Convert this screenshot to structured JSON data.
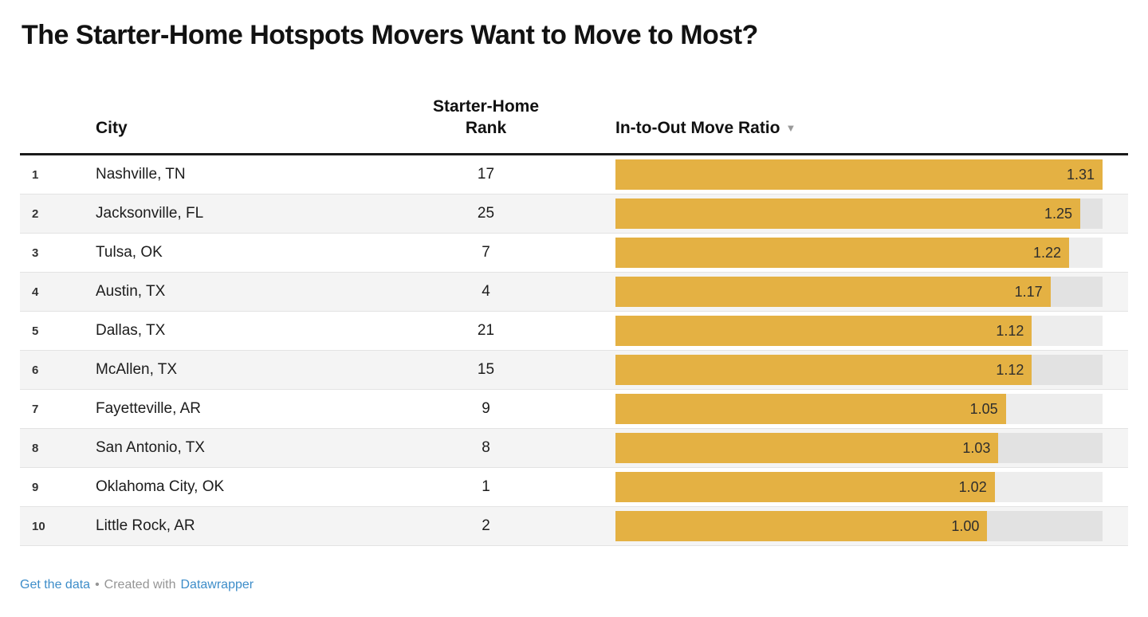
{
  "title": "The Starter-Home Hotspots Movers Want to Move to Most?",
  "table": {
    "headers": {
      "city": "City",
      "rank_line1": "Starter-Home",
      "rank_line2": "Rank",
      "ratio": "In-to-Out Move Ratio",
      "sort_icon": "▼"
    }
  },
  "chart_data": {
    "type": "bar",
    "orientation": "horizontal",
    "title": "The Starter-Home Hotspots Movers Want to Move to Most?",
    "columns": [
      "City",
      "Starter-Home Rank",
      "In-to-Out Move Ratio"
    ],
    "row_numbers": [
      "1",
      "2",
      "3",
      "4",
      "5",
      "6",
      "7",
      "8",
      "9",
      "10"
    ],
    "categories": [
      "Nashville, TN",
      "Jacksonville, FL",
      "Tulsa, OK",
      "Austin, TX",
      "Dallas, TX",
      "McAllen, TX",
      "Fayetteville, AR",
      "San Antonio, TX",
      "Oklahoma City, OK",
      "Little Rock, AR"
    ],
    "starter_home_ranks": [
      "17",
      "25",
      "7",
      "4",
      "21",
      "15",
      "9",
      "8",
      "1",
      "2"
    ],
    "values": [
      1.31,
      1.25,
      1.22,
      1.17,
      1.12,
      1.12,
      1.05,
      1.03,
      1.02,
      1.0
    ],
    "value_labels": [
      "1.31",
      "1.25",
      "1.22",
      "1.17",
      "1.12",
      "1.12",
      "1.05",
      "1.03",
      "1.02",
      "1.00"
    ],
    "xlim": [
      0,
      1.31
    ],
    "sort": {
      "column": "In-to-Out Move Ratio",
      "direction": "desc"
    },
    "bar_color": "#e4b143",
    "row_stripe_color": "#f4f4f4",
    "legend_position": "none",
    "grid": false
  },
  "footer": {
    "get_data": "Get the data",
    "separator": "•",
    "created_with": "Created with",
    "brand": "Datawrapper"
  }
}
